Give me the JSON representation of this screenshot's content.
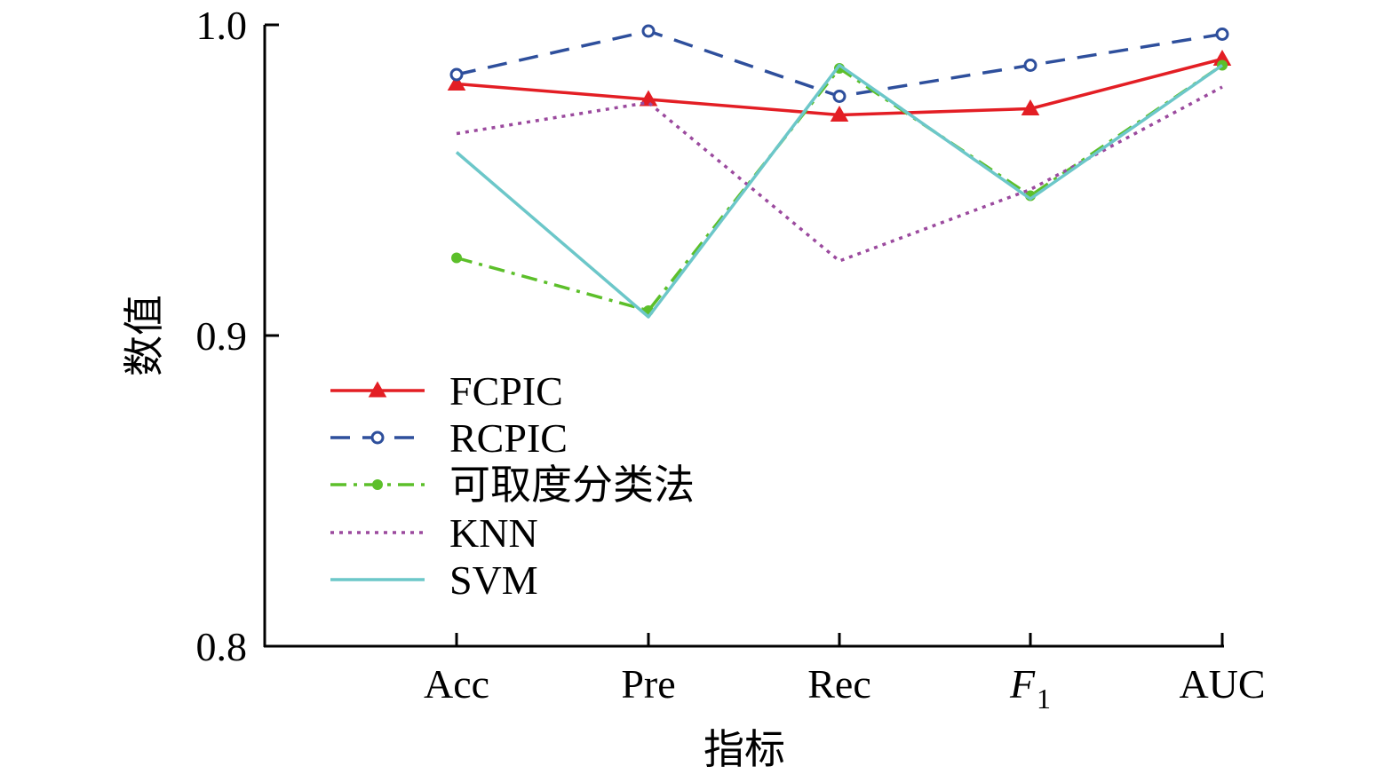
{
  "chart_data": {
    "type": "line",
    "title": "",
    "xlabel": "指标",
    "ylabel": "数值",
    "categories": [
      "Acc",
      "Pre",
      "Rec",
      "F1",
      "AUC"
    ],
    "category_display": [
      {
        "main": "Acc",
        "sub": ""
      },
      {
        "main": "Pre",
        "sub": ""
      },
      {
        "main": "Rec",
        "sub": ""
      },
      {
        "main": "F",
        "sub": "1"
      },
      {
        "main": "AUC",
        "sub": ""
      }
    ],
    "ylim": [
      0.8,
      1.0
    ],
    "yticks": [
      "0.8",
      "0.9",
      "1.0"
    ],
    "grid": false,
    "legend_position": "center-left",
    "series": [
      {
        "name": "FCPIC",
        "color": "#e31e24",
        "dash": "solid",
        "marker": "triangle-filled",
        "values": [
          0.981,
          0.976,
          0.971,
          0.973,
          0.989
        ]
      },
      {
        "name": "RCPIC",
        "color": "#2e4f9c",
        "dash": "dashed",
        "marker": "circle-open",
        "values": [
          0.984,
          0.998,
          0.977,
          0.987,
          0.997
        ]
      },
      {
        "name": "可取度分类法",
        "color": "#5cbf2a",
        "dash": "dashdot",
        "marker": "circle-filled",
        "values": [
          0.925,
          0.908,
          0.986,
          0.945,
          0.987
        ]
      },
      {
        "name": "KNN",
        "color": "#9b4a9e",
        "dash": "dotted",
        "marker": "none",
        "values": [
          0.965,
          0.975,
          0.924,
          0.947,
          0.98
        ]
      },
      {
        "name": "SVM",
        "color": "#6cc7c9",
        "dash": "solid",
        "marker": "none",
        "values": [
          0.959,
          0.906,
          0.987,
          0.944,
          0.987
        ]
      }
    ]
  }
}
